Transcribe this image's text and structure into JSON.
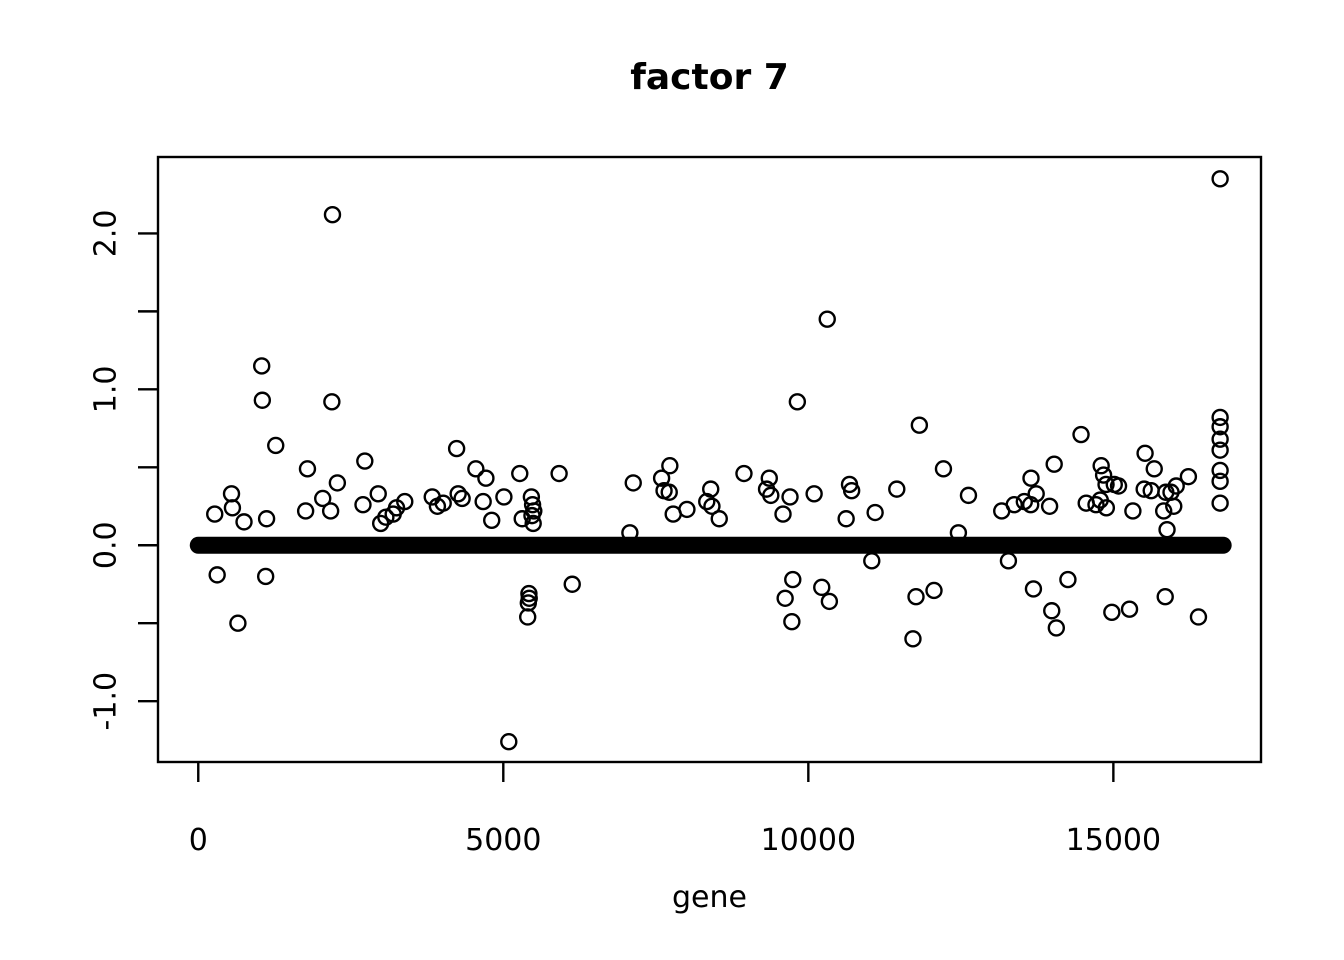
{
  "chart_data": {
    "type": "scatter",
    "title": "factor 7",
    "xlabel": "gene",
    "ylabel": "",
    "xlim": [
      -660,
      17420
    ],
    "ylim": [
      -1.39,
      2.49
    ],
    "grid": false,
    "legend": null,
    "background_color": "#ffffff",
    "point_style": {
      "marker": "open-circle",
      "stroke_color": "#000000",
      "fill": "none",
      "radius_px": 7.5,
      "stroke_width_px": 2.4
    },
    "x_ticks": [
      {
        "value": 0,
        "label": "0"
      },
      {
        "value": 5000,
        "label": "5000"
      },
      {
        "value": 10000,
        "label": "10000"
      },
      {
        "value": 15000,
        "label": "15000"
      }
    ],
    "y_ticks": [
      {
        "value": 2.0,
        "label": "2.0"
      },
      {
        "value": 1.5,
        "label": ""
      },
      {
        "value": 1.0,
        "label": "1.0"
      },
      {
        "value": 0.5,
        "label": ""
      },
      {
        "value": 0.0,
        "label": "0.0"
      },
      {
        "value": -0.5,
        "label": ""
      },
      {
        "value": -1.0,
        "label": "-1.0"
      }
    ],
    "zero_band": {
      "value": 0,
      "gene_start": 0,
      "gene_end": 16800,
      "stroke_width_px": 17,
      "note": "thick solid line: vast majority of genes have loading exactly 0"
    },
    "points": [
      [
        270,
        0.2
      ],
      [
        310,
        -0.19
      ],
      [
        545,
        0.33
      ],
      [
        560,
        0.24
      ],
      [
        650,
        -0.5
      ],
      [
        750,
        0.15
      ],
      [
        1040,
        1.15
      ],
      [
        1050,
        0.93
      ],
      [
        1105,
        -0.2
      ],
      [
        1120,
        0.17
      ],
      [
        1270,
        0.64
      ],
      [
        1760,
        0.22
      ],
      [
        1790,
        0.49
      ],
      [
        2040,
        0.3
      ],
      [
        2170,
        0.22
      ],
      [
        2190,
        0.92
      ],
      [
        2200,
        2.12
      ],
      [
        2280,
        0.4
      ],
      [
        2700,
        0.26
      ],
      [
        2730,
        0.54
      ],
      [
        2950,
        0.33
      ],
      [
        2990,
        0.14
      ],
      [
        3075,
        0.18
      ],
      [
        3195,
        0.2
      ],
      [
        3250,
        0.24
      ],
      [
        3385,
        0.28
      ],
      [
        3835,
        0.31
      ],
      [
        3920,
        0.25
      ],
      [
        4015,
        0.27
      ],
      [
        4235,
        0.62
      ],
      [
        4260,
        0.33
      ],
      [
        4325,
        0.3
      ],
      [
        4550,
        0.49
      ],
      [
        4670,
        0.28
      ],
      [
        4715,
        0.43
      ],
      [
        4810,
        0.16
      ],
      [
        5010,
        0.31
      ],
      [
        5090,
        -1.26
      ],
      [
        5270,
        0.46
      ],
      [
        5310,
        0.17
      ],
      [
        5400,
        -0.46
      ],
      [
        5410,
        -0.37
      ],
      [
        5420,
        -0.31
      ],
      [
        5425,
        -0.34
      ],
      [
        5460,
        0.31
      ],
      [
        5470,
        0.19
      ],
      [
        5480,
        0.26
      ],
      [
        5490,
        0.14
      ],
      [
        5500,
        0.22
      ],
      [
        5915,
        0.46
      ],
      [
        6130,
        -0.25
      ],
      [
        7075,
        0.08
      ],
      [
        7130,
        0.4
      ],
      [
        7595,
        0.43
      ],
      [
        7635,
        0.35
      ],
      [
        7720,
        0.34
      ],
      [
        7730,
        0.51
      ],
      [
        7785,
        0.2
      ],
      [
        8010,
        0.23
      ],
      [
        8335,
        0.28
      ],
      [
        8400,
        0.36
      ],
      [
        8420,
        0.25
      ],
      [
        8540,
        0.17
      ],
      [
        8945,
        0.46
      ],
      [
        9315,
        0.36
      ],
      [
        9360,
        0.43
      ],
      [
        9385,
        0.32
      ],
      [
        9585,
        0.2
      ],
      [
        9620,
        -0.34
      ],
      [
        9700,
        0.31
      ],
      [
        9730,
        -0.49
      ],
      [
        9745,
        -0.22
      ],
      [
        9820,
        0.92
      ],
      [
        10095,
        0.33
      ],
      [
        10220,
        -0.27
      ],
      [
        10310,
        1.45
      ],
      [
        10345,
        -0.36
      ],
      [
        10620,
        0.17
      ],
      [
        10675,
        0.39
      ],
      [
        10710,
        0.35
      ],
      [
        11040,
        -0.1
      ],
      [
        11095,
        0.21
      ],
      [
        11450,
        0.36
      ],
      [
        11715,
        -0.6
      ],
      [
        11765,
        -0.33
      ],
      [
        11820,
        0.77
      ],
      [
        12060,
        -0.29
      ],
      [
        12215,
        0.49
      ],
      [
        12460,
        0.08
      ],
      [
        12625,
        0.32
      ],
      [
        13170,
        0.22
      ],
      [
        13280,
        -0.1
      ],
      [
        13375,
        0.26
      ],
      [
        13540,
        0.28
      ],
      [
        13645,
        0.26
      ],
      [
        13650,
        0.43
      ],
      [
        13690,
        -0.28
      ],
      [
        13735,
        0.33
      ],
      [
        13955,
        0.25
      ],
      [
        13990,
        -0.42
      ],
      [
        14030,
        0.52
      ],
      [
        14065,
        -0.53
      ],
      [
        14255,
        -0.22
      ],
      [
        14470,
        0.71
      ],
      [
        14555,
        0.27
      ],
      [
        14715,
        0.26
      ],
      [
        14785,
        0.29
      ],
      [
        14800,
        0.51
      ],
      [
        14840,
        0.45
      ],
      [
        14880,
        0.39
      ],
      [
        14885,
        0.24
      ],
      [
        14975,
        -0.43
      ],
      [
        15015,
        0.39
      ],
      [
        15085,
        0.38
      ],
      [
        15265,
        -0.41
      ],
      [
        15320,
        0.22
      ],
      [
        15505,
        0.36
      ],
      [
        15520,
        0.59
      ],
      [
        15620,
        0.35
      ],
      [
        15670,
        0.49
      ],
      [
        15825,
        0.22
      ],
      [
        15850,
        -0.33
      ],
      [
        15860,
        0.34
      ],
      [
        15880,
        0.1
      ],
      [
        15945,
        0.34
      ],
      [
        15990,
        0.25
      ],
      [
        16030,
        0.38
      ],
      [
        16230,
        0.44
      ],
      [
        16395,
        -0.46
      ],
      [
        16750,
        2.35
      ],
      [
        16750,
        0.82
      ],
      [
        16750,
        0.76
      ],
      [
        16750,
        0.68
      ],
      [
        16750,
        0.61
      ],
      [
        16750,
        0.48
      ],
      [
        16750,
        0.41
      ],
      [
        16750,
        0.27
      ]
    ]
  }
}
